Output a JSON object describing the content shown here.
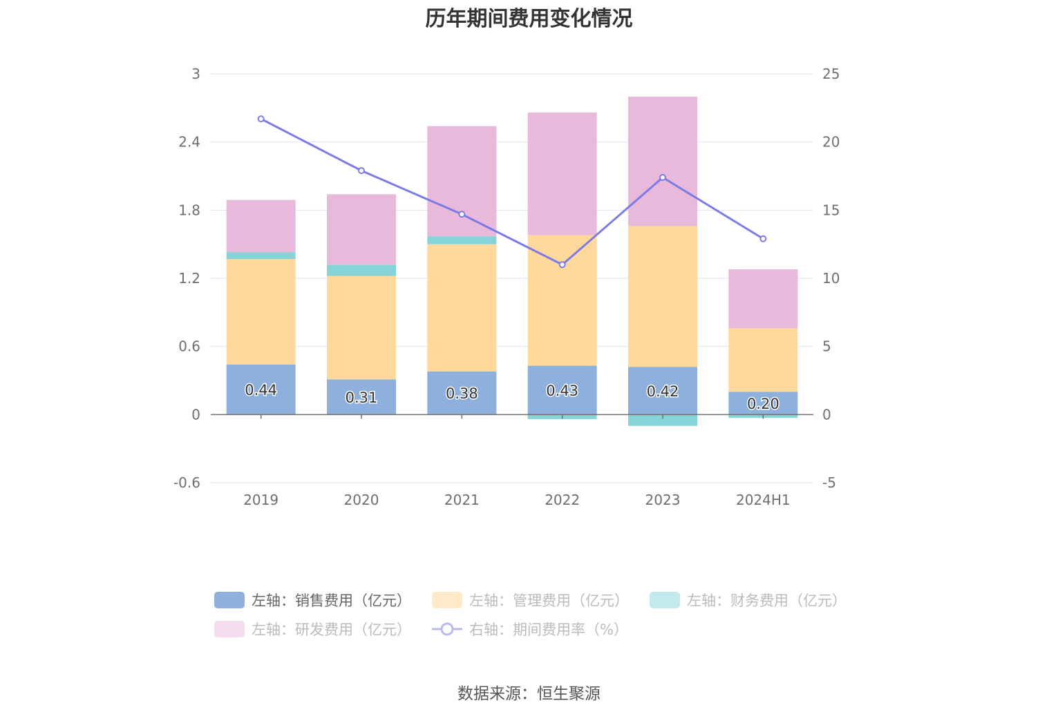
{
  "chart_data": {
    "type": "bar",
    "title": "历年期间费用变化情况",
    "categories": [
      "2019",
      "2020",
      "2021",
      "2022",
      "2023",
      "2024H1"
    ],
    "left_axis": {
      "ylim": [
        -0.6,
        3
      ],
      "ticks": [
        "3",
        "2.4",
        "1.8",
        "1.2",
        "0.6",
        "0",
        "-0.6"
      ],
      "tick_values": [
        3,
        2.4,
        1.8,
        1.2,
        0.6,
        0,
        -0.6
      ]
    },
    "right_axis": {
      "ylim": [
        -5,
        25
      ],
      "ticks": [
        "25",
        "20",
        "15",
        "10",
        "5",
        "0",
        "-5"
      ],
      "tick_values": [
        25,
        20,
        15,
        10,
        5,
        0,
        -5
      ]
    },
    "grid": true,
    "legend_position": "bottom",
    "series": [
      {
        "name": "左轴：销售费用（亿元）",
        "type": "bar",
        "axis": "left",
        "color": "#8eb0dc",
        "enabled": true,
        "values": [
          0.44,
          0.31,
          0.38,
          0.43,
          0.42,
          0.2
        ],
        "labels": [
          "0.44",
          "0.31",
          "0.38",
          "0.43",
          "0.42",
          "0.20"
        ]
      },
      {
        "name": "左轴：管理费用（亿元）",
        "type": "bar",
        "axis": "left",
        "color": "#ffd99b",
        "enabled": false,
        "values": [
          0.93,
          0.91,
          1.12,
          1.15,
          1.24,
          0.56
        ]
      },
      {
        "name": "左轴：财务费用（亿元）",
        "type": "bar",
        "axis": "left",
        "color": "#86d4d8",
        "enabled": false,
        "values": [
          0.06,
          0.1,
          0.07,
          -0.04,
          -0.1,
          -0.03
        ]
      },
      {
        "name": "左轴：研发费用（亿元）",
        "type": "bar",
        "axis": "left",
        "color": "#e8b9da",
        "enabled": false,
        "values": [
          0.46,
          0.62,
          0.97,
          1.08,
          1.14,
          0.52
        ]
      },
      {
        "name": "右轴：期间费用率（%）",
        "type": "line",
        "axis": "right",
        "color": "#7b7be6",
        "enabled": false,
        "values": [
          21.7,
          17.9,
          14.7,
          11.0,
          17.4,
          12.9
        ]
      }
    ]
  },
  "source": "数据来源：恒生聚源"
}
